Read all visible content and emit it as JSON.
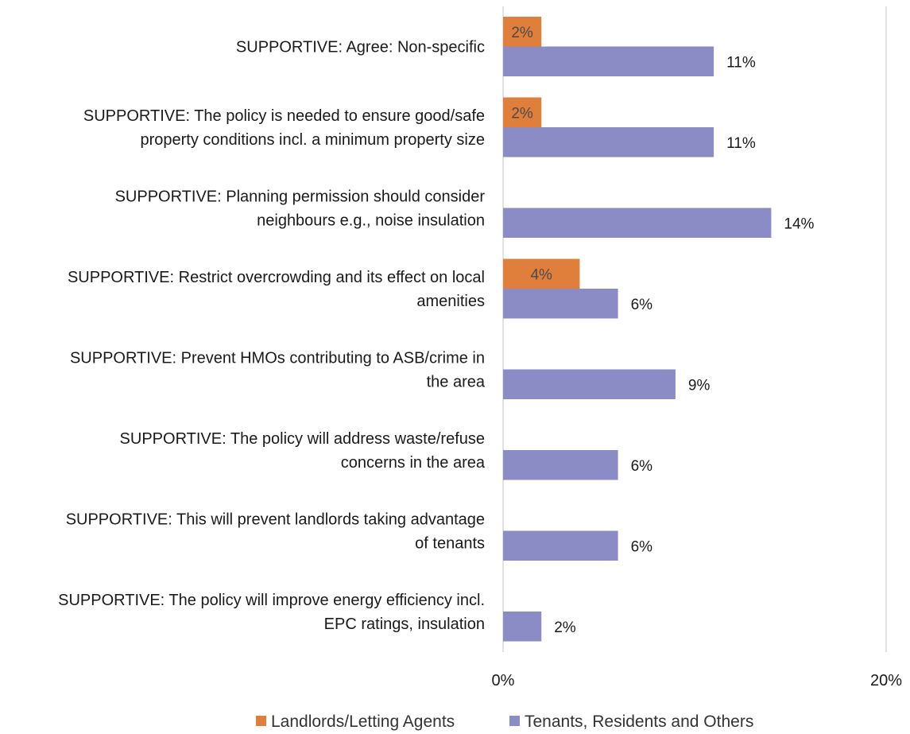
{
  "colors": {
    "landlords": "#E07F3C",
    "tenants": "#8B8BC6",
    "gridline": "#D9D9D9"
  },
  "chart_data": {
    "type": "bar",
    "orientation": "horizontal",
    "categories": [
      [
        "SUPPORTIVE: Agree: Non-specific"
      ],
      [
        "SUPPORTIVE: The policy is needed to ensure good/safe",
        "property conditions incl. a minimum property size"
      ],
      [
        "SUPPORTIVE: Planning permission should consider",
        "neighbours e.g., noise insulation"
      ],
      [
        "SUPPORTIVE: Restrict overcrowding and its effect on local",
        "amenities"
      ],
      [
        "SUPPORTIVE: Prevent HMOs contributing to ASB/crime in",
        "the area"
      ],
      [
        "SUPPORTIVE: The policy will address waste/refuse",
        "concerns in the area"
      ],
      [
        "SUPPORTIVE: This will prevent landlords taking advantage",
        "of tenants"
      ],
      [
        "SUPPORTIVE: The policy will improve energy efficiency incl.",
        "EPC ratings, insulation"
      ]
    ],
    "series": [
      {
        "name": "Landlords/Letting Agents",
        "values": [
          2,
          2,
          null,
          4,
          null,
          null,
          null,
          null
        ],
        "labels": [
          "2%",
          "2%",
          "",
          "4%",
          "",
          "",
          "",
          ""
        ]
      },
      {
        "name": "Tenants, Residents and Others",
        "values": [
          11,
          11,
          14,
          6,
          9,
          6,
          6,
          2
        ],
        "labels": [
          "11%",
          "11%",
          "14%",
          "6%",
          "9%",
          "6%",
          "6%",
          "2%"
        ]
      }
    ],
    "xlim": [
      0,
      20
    ],
    "xticks": [
      0,
      20
    ],
    "xtick_labels": [
      "0%",
      "20%"
    ],
    "grid": "vertical",
    "legend": "bottom",
    "title": "",
    "xlabel": "",
    "ylabel": ""
  }
}
